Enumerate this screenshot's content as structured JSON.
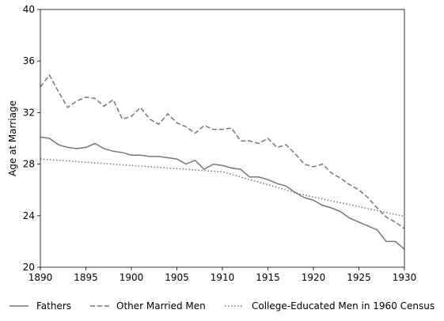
{
  "chart_data": {
    "type": "line",
    "title": "",
    "xlabel": "",
    "ylabel": "Age at Marriage",
    "xlim": [
      1890,
      1930
    ],
    "ylim": [
      20,
      40
    ],
    "xticks": [
      1890,
      1895,
      1900,
      1905,
      1910,
      1915,
      1920,
      1925,
      1930
    ],
    "yticks": [
      20,
      24,
      28,
      32,
      36,
      40
    ],
    "grid": false,
    "legend_position": "bottom",
    "x": [
      1890,
      1891,
      1892,
      1893,
      1894,
      1895,
      1896,
      1897,
      1898,
      1899,
      1900,
      1901,
      1902,
      1903,
      1904,
      1905,
      1906,
      1907,
      1908,
      1909,
      1910,
      1911,
      1912,
      1913,
      1914,
      1915,
      1916,
      1917,
      1918,
      1919,
      1920,
      1921,
      1922,
      1923,
      1924,
      1925,
      1926,
      1927,
      1928,
      1929,
      1930
    ],
    "series": [
      {
        "name": "Fathers",
        "style": "solid",
        "color": "#777777",
        "values": [
          30.1,
          30.0,
          29.5,
          29.3,
          29.2,
          29.3,
          29.6,
          29.2,
          29.0,
          28.9,
          28.7,
          28.7,
          28.6,
          28.6,
          28.5,
          28.4,
          28.0,
          28.3,
          27.6,
          28.0,
          27.9,
          27.7,
          27.6,
          27.0,
          27.0,
          26.8,
          26.5,
          26.3,
          25.8,
          25.4,
          25.2,
          24.8,
          24.6,
          24.3,
          23.8,
          23.5,
          23.2,
          22.9,
          22.0,
          22.0,
          21.4
        ]
      },
      {
        "name": "Other Married Men",
        "style": "dashed",
        "color": "#777777",
        "values": [
          34.0,
          34.9,
          33.6,
          32.4,
          32.9,
          33.2,
          33.1,
          32.5,
          33.0,
          31.5,
          31.7,
          32.4,
          31.5,
          31.1,
          31.9,
          31.2,
          30.9,
          30.4,
          31.0,
          30.7,
          30.7,
          30.8,
          29.8,
          29.8,
          29.6,
          30.0,
          29.3,
          29.5,
          28.8,
          28.0,
          27.8,
          28.0,
          27.3,
          26.9,
          26.4,
          26.0,
          25.4,
          24.6,
          23.9,
          23.5,
          23.0
        ]
      },
      {
        "name": "College-Educated Men in 1960 Census",
        "style": "dotted",
        "color": "#777777",
        "values": [
          28.4,
          28.35,
          28.3,
          28.25,
          28.2,
          28.15,
          28.1,
          28.05,
          28.0,
          27.95,
          27.9,
          27.85,
          27.8,
          27.75,
          27.7,
          27.65,
          27.6,
          27.55,
          27.5,
          27.45,
          27.4,
          27.2,
          27.0,
          26.8,
          26.6,
          26.4,
          26.2,
          26.0,
          25.8,
          25.6,
          25.45,
          25.3,
          25.15,
          25.0,
          24.85,
          24.7,
          24.55,
          24.4,
          24.25,
          24.1,
          23.95
        ]
      }
    ]
  }
}
